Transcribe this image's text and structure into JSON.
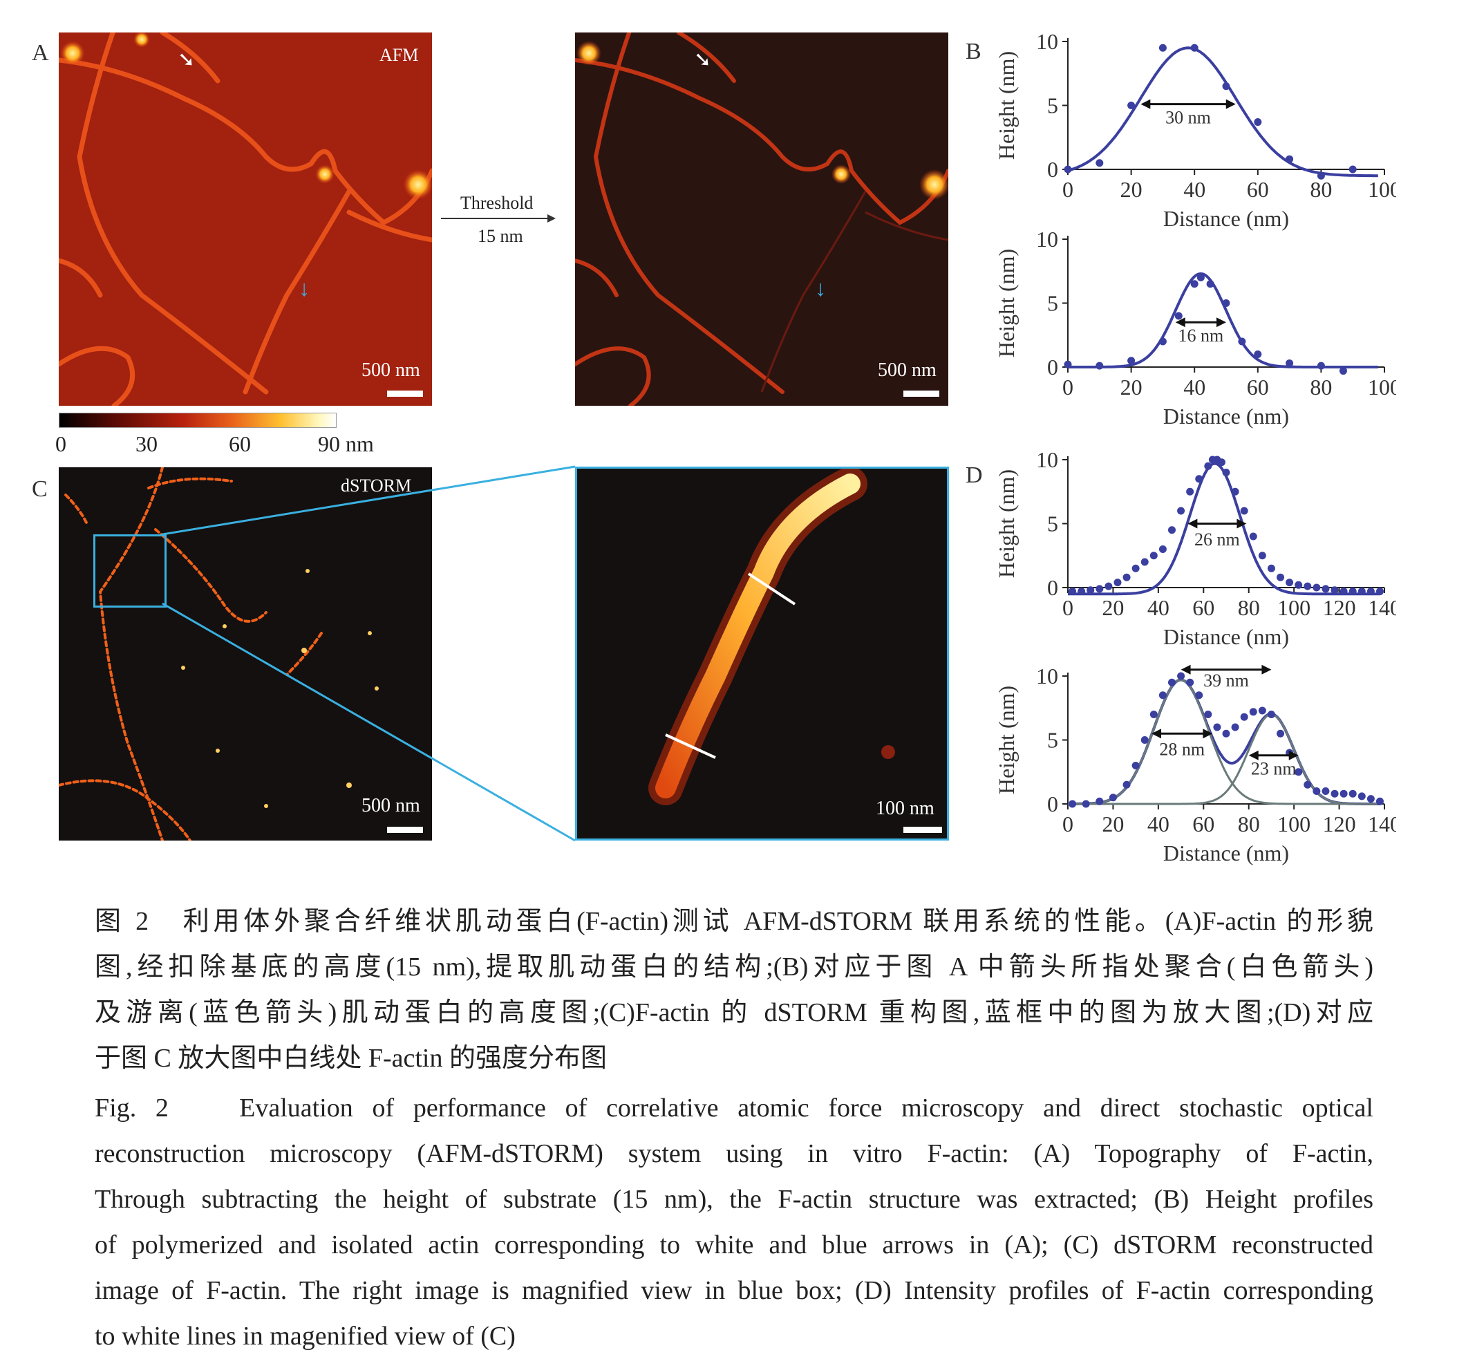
{
  "panels": {
    "A": {
      "letter": "A",
      "afm_label": "AFM",
      "scale_raw": "500 nm",
      "scale_thresh": "500 nm",
      "threshold_label": "Threshold",
      "threshold_value": "15 nm",
      "colorbar": {
        "ticks": [
          "0",
          "30",
          "60",
          "90 nm"
        ]
      }
    },
    "B": {
      "letter": "B"
    },
    "C": {
      "letter": "C",
      "dstorm_label": "dSTORM",
      "scale_main": "500 nm",
      "scale_zoom": "100 nm"
    },
    "D": {
      "letter": "D"
    }
  },
  "chart_data": [
    {
      "type": "line",
      "panel": "B (top)",
      "xlabel": "Distance (nm)",
      "ylabel": "Height (nm)",
      "xlim": [
        0,
        100
      ],
      "ylim": [
        0,
        10
      ],
      "xticks": [
        "0",
        "20",
        "40",
        "60",
        "80",
        "100"
      ],
      "yticks": [
        "0",
        "5",
        "10"
      ],
      "points": [
        [
          0,
          0
        ],
        [
          10,
          0.5
        ],
        [
          20,
          5
        ],
        [
          30,
          9.5
        ],
        [
          40,
          9.5
        ],
        [
          50,
          6.5
        ],
        [
          60,
          3.7
        ],
        [
          70,
          0.8
        ],
        [
          80,
          -0.5
        ],
        [
          90,
          0
        ]
      ],
      "fit": [
        {
          "amp": 10,
          "mu": 38,
          "sigma": 15,
          "base": -0.5,
          "color": "#3a3fa0"
        }
      ],
      "annotations": [
        {
          "text": "30 nm",
          "x1": 23,
          "x2": 53,
          "y": 5.1,
          "label_y": 3.6
        }
      ]
    },
    {
      "type": "line",
      "panel": "B (bottom)",
      "xlabel": "Distance (nm)",
      "ylabel": "Height (nm)",
      "xlim": [
        0,
        100
      ],
      "ylim": [
        0,
        10
      ],
      "xticks": [
        "0",
        "20",
        "40",
        "60",
        "80",
        "100"
      ],
      "yticks": [
        "0",
        "5",
        "10"
      ],
      "points": [
        [
          0,
          0.2
        ],
        [
          10,
          0.1
        ],
        [
          20,
          0.5
        ],
        [
          30,
          2
        ],
        [
          35,
          4
        ],
        [
          40,
          6.5
        ],
        [
          42,
          7
        ],
        [
          45,
          6.5
        ],
        [
          50,
          5
        ],
        [
          55,
          2
        ],
        [
          60,
          1
        ],
        [
          70,
          0.3
        ],
        [
          80,
          0.1
        ],
        [
          87,
          -0.3
        ]
      ],
      "fit": [
        {
          "amp": 7.3,
          "mu": 42,
          "sigma": 8,
          "base": 0,
          "color": "#3a3fa0"
        }
      ],
      "annotations": [
        {
          "text": "16 nm",
          "x1": 34,
          "x2": 50,
          "y": 3.5,
          "label_y": 2
        }
      ]
    },
    {
      "type": "line",
      "panel": "D (top)",
      "xlabel": "Distance (nm)",
      "ylabel": "Height (nm)",
      "xlim": [
        0,
        140
      ],
      "ylim": [
        0,
        10
      ],
      "xticks": [
        "0",
        "20",
        "40",
        "60",
        "80",
        "100",
        "120",
        "140"
      ],
      "yticks": [
        "0",
        "5",
        "10"
      ],
      "points": [
        [
          2,
          -0.3
        ],
        [
          6,
          -0.3
        ],
        [
          10,
          -0.2
        ],
        [
          14,
          -0.1
        ],
        [
          18,
          0.1
        ],
        [
          22,
          0.4
        ],
        [
          26,
          0.8
        ],
        [
          30,
          1.5
        ],
        [
          34,
          2
        ],
        [
          38,
          2.5
        ],
        [
          42,
          3
        ],
        [
          46,
          4.5
        ],
        [
          50,
          6
        ],
        [
          54,
          7.5
        ],
        [
          58,
          8.5
        ],
        [
          62,
          9.5
        ],
        [
          64,
          10
        ],
        [
          66,
          10
        ],
        [
          68,
          9.8
        ],
        [
          70,
          9
        ],
        [
          74,
          7.5
        ],
        [
          78,
          6
        ],
        [
          82,
          4
        ],
        [
          86,
          2.5
        ],
        [
          90,
          1.5
        ],
        [
          94,
          0.8
        ],
        [
          98,
          0.4
        ],
        [
          102,
          0.2
        ],
        [
          106,
          0.1
        ],
        [
          110,
          0
        ],
        [
          114,
          -0.1
        ],
        [
          118,
          -0.2
        ],
        [
          122,
          -0.3
        ],
        [
          126,
          -0.3
        ],
        [
          130,
          -0.3
        ],
        [
          134,
          -0.3
        ],
        [
          138,
          -0.3
        ]
      ],
      "fit": [
        {
          "amp": 10.2,
          "mu": 65,
          "sigma": 11,
          "base": -0.5,
          "color": "#3a3fa0"
        }
      ],
      "annotations": [
        {
          "text": "26 nm",
          "x1": 53,
          "x2": 79,
          "y": 5,
          "label_y": 3.3
        }
      ]
    },
    {
      "type": "line",
      "panel": "D (bottom)",
      "xlabel": "Distance (nm)",
      "ylabel": "Height (nm)",
      "xlim": [
        0,
        140
      ],
      "ylim": [
        0,
        10
      ],
      "xticks": [
        "0",
        "20",
        "40",
        "60",
        "80",
        "100",
        "120",
        "140"
      ],
      "yticks": [
        "0",
        "5",
        "10"
      ],
      "points": [
        [
          2,
          0
        ],
        [
          8,
          0
        ],
        [
          14,
          0.2
        ],
        [
          20,
          0.5
        ],
        [
          26,
          1.5
        ],
        [
          30,
          3
        ],
        [
          34,
          5
        ],
        [
          38,
          7
        ],
        [
          42,
          8.5
        ],
        [
          46,
          9.5
        ],
        [
          50,
          10
        ],
        [
          54,
          9.5
        ],
        [
          58,
          8.5
        ],
        [
          62,
          7
        ],
        [
          66,
          6
        ],
        [
          70,
          5.5
        ],
        [
          74,
          6
        ],
        [
          78,
          6.8
        ],
        [
          82,
          7.2
        ],
        [
          86,
          7.3
        ],
        [
          90,
          7
        ],
        [
          94,
          5.5
        ],
        [
          98,
          4
        ],
        [
          102,
          2.5
        ],
        [
          106,
          1.5
        ],
        [
          110,
          1
        ],
        [
          114,
          1
        ],
        [
          118,
          0.8
        ],
        [
          122,
          0.8
        ],
        [
          126,
          0.8
        ],
        [
          130,
          0.6
        ],
        [
          134,
          0.4
        ],
        [
          138,
          0.2
        ]
      ],
      "fit": [
        {
          "amp": 10,
          "mu": 51,
          "sigma": 12,
          "base": 0,
          "color": "#3a3fa0",
          "sum_with": 1
        },
        {
          "amp": 9.7,
          "mu": 50,
          "sigma": 12,
          "base": 0,
          "color": "#6a7a7a"
        },
        {
          "amp": 7,
          "mu": 90,
          "sigma": 10,
          "base": 0,
          "color": "#6a7a7a"
        }
      ],
      "annotations": [
        {
          "text": "39 nm",
          "x1": 50,
          "x2": 90,
          "y": 10.5,
          "label_y": 9.2
        },
        {
          "text": "28 nm",
          "x1": 37,
          "x2": 64,
          "y": 5.5,
          "label_y": 3.8
        },
        {
          "text": "23 nm",
          "x1": 80,
          "x2": 102,
          "y": 3.8,
          "label_y": 2.3
        }
      ]
    }
  ],
  "caption": {
    "cn": [
      "图 2　利用体外聚合纤维状肌动蛋白(F-actin)测试 AFM-dSTORM 联用系统的性能。(A)F-actin 的形貌",
      "图,经扣除基底的高度(15 nm),提取肌动蛋白的结构;(B)对应于图 A 中箭头所指处聚合(白色箭头)",
      "及游离(蓝色箭头)肌动蛋白的高度图;(C)F-actin 的 dSTORM 重构图,蓝框中的图为放大图;(D)对应",
      "于图 C 放大图中白线处 F-actin 的强度分布图"
    ],
    "en": [
      "Fig. 2　 Evaluation of performance of correlative atomic force microscopy and direct stochastic optical",
      "reconstruction microscopy (AFM-dSTORM) system using in vitro F-actin: (A) Topography of F-actin,",
      "Through subtracting the height of substrate (15 nm), the F-actin structure was extracted; (B) Height profiles",
      "of polymerized and isolated actin corresponding to white and blue arrows in (A); (C) dSTORM reconstructed",
      "image of F-actin. The right image is magnified view in blue box; (D) Intensity profiles of F-actin corresponding",
      "to white lines in magenified view of (C)"
    ]
  }
}
